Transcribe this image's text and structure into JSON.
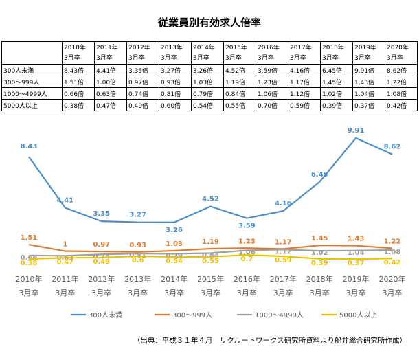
{
  "title": "従業員別有効求人倍率",
  "table": {
    "columns": [
      [
        "2010年",
        "3月卒"
      ],
      [
        "2011年",
        "3月卒"
      ],
      [
        "2012年",
        "3月卒"
      ],
      [
        "2013年",
        "3月卒"
      ],
      [
        "2014年",
        "3月卒"
      ],
      [
        "2015年",
        "3月卒"
      ],
      [
        "2016年",
        "3月卒"
      ],
      [
        "2017年",
        "3月卒"
      ],
      [
        "2018年",
        "3月卒"
      ],
      [
        "2019年",
        "3月卒"
      ],
      [
        "2020年",
        "3月卒"
      ]
    ],
    "rows": [
      {
        "label": "300人未満",
        "cells": [
          "8.43倍",
          "4.41倍",
          "3.35倍",
          "3.27倍",
          "3.26倍",
          "4.52倍",
          "3.59倍",
          "4.16倍",
          "6.45倍",
          "9.91倍",
          "8.62倍"
        ]
      },
      {
        "label": "300～999人",
        "cells": [
          "1.51倍",
          "1.00倍",
          "0.97倍",
          "0.93倍",
          "1.03倍",
          "1.19倍",
          "1.23倍",
          "1.17倍",
          "1.45倍",
          "1.43倍",
          "1.22倍"
        ]
      },
      {
        "label": "1000～4999人",
        "cells": [
          "0.66倍",
          "0.63倍",
          "0.74倍",
          "0.81倍",
          "0.79倍",
          "0.84倍",
          "1.06倍",
          "1.12倍",
          "1.02倍",
          "1.04倍",
          "1.08倍"
        ]
      },
      {
        "label": "5000人以上",
        "cells": [
          "0.38倍",
          "0.47倍",
          "0.49倍",
          "0.60倍",
          "0.54倍",
          "0.55倍",
          "0.70倍",
          "0.59倍",
          "0.39倍",
          "0.37倍",
          "0.42倍"
        ]
      }
    ]
  },
  "chart_data": {
    "type": "line",
    "categories": [
      [
        "2010年",
        "3月卒"
      ],
      [
        "2011年",
        "3月卒"
      ],
      [
        "2012年",
        "3月卒"
      ],
      [
        "2013年",
        "3月卒"
      ],
      [
        "2014年",
        "3月卒"
      ],
      [
        "2015年",
        "3月卒"
      ],
      [
        "2016年",
        "3月卒"
      ],
      [
        "2017年",
        "3月卒"
      ],
      [
        "2018年",
        "3月卒"
      ],
      [
        "2019年",
        "3月卒"
      ],
      [
        "2020年",
        "3月卒"
      ]
    ],
    "series": [
      {
        "name": "300人未満",
        "color": "#4a8fc9",
        "values": [
          8.43,
          4.41,
          3.35,
          3.27,
          3.26,
          4.52,
          3.59,
          4.16,
          6.45,
          9.91,
          8.62
        ],
        "labels": [
          "8.43",
          "4.41",
          "3.35",
          "3.27",
          "3.26",
          "4.52",
          "3.59",
          "4.16",
          "6.45",
          "9.91",
          "8.62"
        ]
      },
      {
        "name": "300～999人",
        "color": "#e07b2e",
        "values": [
          1.51,
          1.0,
          0.97,
          0.93,
          1.03,
          1.19,
          1.23,
          1.17,
          1.45,
          1.43,
          1.22
        ],
        "labels": [
          "1.51",
          "1",
          "0.97",
          "0.93",
          "1.03",
          "1.19",
          "1.23",
          "1.17",
          "1.45",
          "1.43",
          "1.22"
        ]
      },
      {
        "name": "1000～4999人",
        "color": "#9e9e9e",
        "values": [
          0.66,
          0.63,
          0.74,
          0.81,
          0.79,
          0.84,
          1.06,
          1.12,
          1.02,
          1.04,
          1.08
        ],
        "labels": [
          "0.66",
          "0.63",
          "0.74",
          "0.81",
          "0.79",
          "0.84",
          "1.06",
          "1.12",
          "1.02",
          "1.04",
          "1.08"
        ]
      },
      {
        "name": "5000人以上",
        "color": "#f2bf00",
        "values": [
          0.38,
          0.47,
          0.49,
          0.6,
          0.54,
          0.55,
          0.7,
          0.59,
          0.39,
          0.37,
          0.42
        ],
        "labels": [
          "0.38",
          "0.47",
          "0.49",
          "0.6",
          "0.54",
          "0.55",
          "0.7",
          "0.59",
          "0.39",
          "0.37",
          "0.42"
        ]
      }
    ],
    "ylim": [
      0,
      10.5
    ],
    "grid": false,
    "legend": "bottom"
  },
  "source": "（出典：平成３１年４月　リクルートワークス研究所資料より船井総合研究所作成）"
}
